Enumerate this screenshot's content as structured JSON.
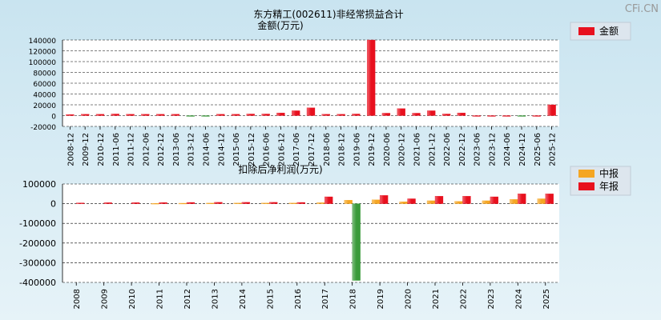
{
  "watermark": "CFi.CN",
  "chart_data": [
    {
      "type": "bar",
      "title": "东方精工(002611)非经常损益合计",
      "subtitle": "金额(万元)",
      "categories": [
        "2008-12",
        "2009-12",
        "2010-12",
        "2011-06",
        "2011-12",
        "2012-06",
        "2012-12",
        "2013-06",
        "2013-12",
        "2014-06",
        "2014-12",
        "2015-06",
        "2015-12",
        "2016-06",
        "2016-12",
        "2017-06",
        "2017-12",
        "2018-06",
        "2018-12",
        "2019-06",
        "2019-12",
        "2020-06",
        "2020-12",
        "2021-06",
        "2021-12",
        "2022-06",
        "2022-12",
        "2023-06",
        "2023-12",
        "2024-06",
        "2024-12",
        "2025-06",
        "2025-12"
      ],
      "series": [
        {
          "name": "金额",
          "color": "#e8101e",
          "values": [
            2000,
            2500,
            2500,
            3000,
            2500,
            2500,
            2500,
            2500,
            -800,
            -600,
            2500,
            2500,
            3000,
            3000,
            5000,
            9000,
            14500,
            2500,
            2500,
            3000,
            140000,
            4500,
            13000,
            4500,
            9000,
            3000,
            5000,
            0,
            0,
            0,
            -1000,
            0,
            20000
          ]
        }
      ],
      "yticks": [
        140000,
        120000,
        100000,
        80000,
        60000,
        40000,
        20000,
        0,
        -20000
      ],
      "ylim": [
        -20000,
        140000
      ],
      "grid": true,
      "legend": "top-right"
    },
    {
      "type": "bar",
      "title": "扣除后净利润(万元)",
      "categories": [
        "2008",
        "2009",
        "2010",
        "2011",
        "2012",
        "2013",
        "2014",
        "2015",
        "2016",
        "2017",
        "2018",
        "2019",
        "2020",
        "2021",
        "2022",
        "2023",
        "2024",
        "2025"
      ],
      "series": [
        {
          "name": "中报",
          "color": "#f5a623",
          "values": [
            null,
            null,
            null,
            2000,
            2500,
            3000,
            3500,
            3500,
            3500,
            5000,
            18000,
            20000,
            10000,
            15000,
            12000,
            15000,
            22000,
            25000
          ]
        },
        {
          "name": "年报",
          "color": "#e8101e",
          "values": [
            4000,
            5000,
            5500,
            6000,
            6500,
            7000,
            7000,
            7000,
            6500,
            35000,
            -390000,
            42000,
            25000,
            38000,
            38000,
            35000,
            50000,
            50000
          ]
        }
      ],
      "yticks": [
        100000,
        0,
        -100000,
        -200000,
        -300000,
        -400000
      ],
      "ylim": [
        -400000,
        100000
      ],
      "grid": true,
      "legend": "top-right"
    }
  ]
}
